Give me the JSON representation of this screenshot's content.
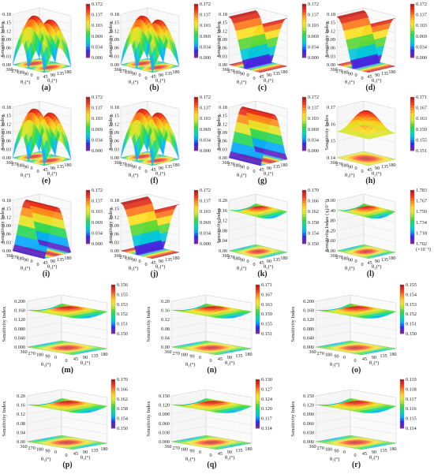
{
  "common": {
    "ylabel": "Sensitivity Index",
    "x1label": "θ₁(°)",
    "x2label": "θ₂(°)",
    "x1ticks": [
      "360",
      "270",
      "180",
      "90",
      "0"
    ],
    "x2ticks": [
      "0",
      "45",
      "90",
      "135",
      "180"
    ]
  },
  "chart_data": [
    {
      "type": "surface3d",
      "caption": "(a)",
      "pattern": "peaks4",
      "zticks": [
        "0.00",
        "0.03",
        "0.06",
        "0.09",
        "0.12",
        "0.15",
        "0.18"
      ],
      "cbar": [
        "0.172",
        "0.137",
        "0.103",
        "0.069",
        "0.034",
        "0.000"
      ],
      "zlim": [
        0,
        0.18
      ]
    },
    {
      "type": "surface3d",
      "caption": "(b)",
      "pattern": "peaks4",
      "zticks": [
        "0.00",
        "0.03",
        "0.06",
        "0.09",
        "0.12",
        "0.15",
        "0.18"
      ],
      "cbar": [
        "0.172",
        "0.137",
        "0.103",
        "0.069",
        "0.034",
        "0.000"
      ],
      "zlim": [
        0,
        0.18
      ]
    },
    {
      "type": "surface3d",
      "caption": "(c)",
      "pattern": "ridge2",
      "zticks": [
        "0.00",
        "0.03",
        "0.06",
        "0.09",
        "0.12",
        "0.15",
        "0.18"
      ],
      "cbar": [
        "0.172",
        "0.137",
        "0.103",
        "0.069",
        "0.034",
        "0.000"
      ],
      "zlim": [
        0,
        0.18
      ]
    },
    {
      "type": "surface3d",
      "caption": "(d)",
      "pattern": "ridge2",
      "zticks": [
        "0.00",
        "0.03",
        "0.06",
        "0.09",
        "0.12",
        "0.15",
        "0.18"
      ],
      "cbar": [
        "0.172",
        "0.137",
        "0.103",
        "0.069",
        "0.034",
        "0.000"
      ],
      "zlim": [
        0,
        0.18
      ]
    },
    {
      "type": "surface3d",
      "caption": "(e)",
      "pattern": "peaks4",
      "zticks": [
        "0.00",
        "0.03",
        "0.06",
        "0.09",
        "0.12",
        "0.15",
        "0.18"
      ],
      "cbar": [
        "0.172",
        "0.137",
        "0.103",
        "0.069",
        "0.034",
        "0.000"
      ],
      "zlim": [
        0,
        0.18
      ]
    },
    {
      "type": "surface3d",
      "caption": "(f)",
      "pattern": "peaks4",
      "zticks": [
        "0.00",
        "0.03",
        "0.06",
        "0.09",
        "0.12",
        "0.15",
        "0.18"
      ],
      "cbar": [
        "0.172",
        "0.137",
        "0.103",
        "0.069",
        "0.034",
        "0.000"
      ],
      "zlim": [
        0,
        0.18
      ]
    },
    {
      "type": "surface3d",
      "caption": "(g)",
      "pattern": "ridge1",
      "zticks": [
        "0.00",
        "0.03",
        "0.06",
        "0.09",
        "0.12",
        "0.15",
        "0.18"
      ],
      "cbar": [
        "0.172",
        "0.137",
        "0.103",
        "0.069",
        "0.034",
        "0.000"
      ],
      "zlim": [
        0,
        0.18
      ]
    },
    {
      "type": "surface3d",
      "caption": "(h)",
      "pattern": "gentle",
      "zticks": [
        "0.14",
        "0.15",
        "0.16",
        "0.17"
      ],
      "cbar": [
        "0.171",
        "0.167",
        "0.163",
        "0.159",
        "0.155",
        "0.151"
      ],
      "zlim": [
        0.14,
        0.175
      ]
    },
    {
      "type": "surface3d",
      "caption": "(i)",
      "pattern": "ridge1",
      "zticks": [
        "0.00",
        "0.03",
        "0.06",
        "0.09",
        "0.12",
        "0.15",
        "0.18"
      ],
      "cbar": [
        "0.172",
        "0.137",
        "0.103",
        "0.069",
        "0.034",
        "0.000"
      ],
      "zlim": [
        0,
        0.18
      ]
    },
    {
      "type": "surface3d",
      "caption": "(j)",
      "pattern": "ridge2",
      "zticks": [
        "0.00",
        "0.03",
        "0.06",
        "0.09",
        "0.12",
        "0.15",
        "0.18"
      ],
      "cbar": [
        "0.172",
        "0.137",
        "0.103",
        "0.069",
        "0.034",
        "0.000"
      ],
      "zlim": [
        0,
        0.18
      ]
    },
    {
      "type": "surface3d",
      "caption": "(k)",
      "pattern": "flat",
      "zticks": [
        "0.00",
        "0.04",
        "0.08",
        "0.12",
        "0.16",
        "0.20"
      ],
      "cbar": [
        "0.170",
        "0.166",
        "0.162",
        "0.158",
        "0.154",
        "0.150"
      ],
      "zlim": [
        0,
        0.2
      ]
    },
    {
      "type": "surface3d",
      "caption": "(l)",
      "pattern": "flat",
      "ylabel": "Sensitivity Index (×10⁻³)",
      "zticks": [
        "0.00",
        "0.60",
        "1.20",
        "1.80",
        "2.40",
        "3.00"
      ],
      "cbar": [
        "1.783",
        "1.767",
        "1.750",
        "1.734",
        "1.718",
        "1.702"
      ],
      "cbar_unit": "(×10⁻³)",
      "zlim": [
        0,
        3
      ]
    },
    {
      "type": "surface3d",
      "caption": "(m)",
      "pattern": "flat",
      "zticks": [
        "0.000",
        "0.040",
        "0.080",
        "0.120",
        "0.160",
        "0.200"
      ],
      "cbar": [
        "0.156",
        "0.155",
        "0.153",
        "0.152",
        "0.151",
        "0.150"
      ],
      "zlim": [
        0,
        0.2
      ]
    },
    {
      "type": "surface3d",
      "caption": "(n)",
      "pattern": "flat",
      "zticks": [
        "0.00",
        "0.04",
        "0.08",
        "0.12",
        "0.16",
        "0.20"
      ],
      "cbar": [
        "0.171",
        "0.167",
        "0.163",
        "0.159",
        "0.155",
        "0.151"
      ],
      "zlim": [
        0,
        0.2
      ]
    },
    {
      "type": "surface3d",
      "caption": "(o)",
      "pattern": "flat",
      "zticks": [
        "0.000",
        "0.040",
        "0.080",
        "0.120",
        "0.160",
        "0.200"
      ],
      "cbar": [
        "0.155",
        "0.154",
        "0.153",
        "0.152",
        "0.151",
        "0.150"
      ],
      "zlim": [
        0,
        0.2
      ]
    },
    {
      "type": "surface3d",
      "caption": "(p)",
      "pattern": "flat",
      "zticks": [
        "0.00",
        "0.04",
        "0.08",
        "0.12",
        "0.16",
        "0.20"
      ],
      "cbar": [
        "0.170",
        "0.166",
        "0.162",
        "0.158",
        "0.154",
        "0.150"
      ],
      "zlim": [
        0,
        0.2
      ]
    },
    {
      "type": "surface3d",
      "caption": "(q)",
      "pattern": "flat",
      "zticks": [
        "0.000",
        "0.030",
        "0.060",
        "0.090",
        "0.120",
        "0.150"
      ],
      "cbar": [
        "0.130",
        "0.127",
        "0.124",
        "0.120",
        "0.117",
        "0.114"
      ],
      "zlim": [
        0,
        0.15
      ]
    },
    {
      "type": "surface3d",
      "caption": "(r)",
      "pattern": "flat",
      "zticks": [
        "0.000",
        "0.030",
        "0.060",
        "0.090",
        "0.120",
        "0.150"
      ],
      "cbar": [
        "0.119",
        "0.118",
        "0.117",
        "0.116",
        "0.115",
        "0.114"
      ],
      "zlim": [
        0,
        0.15
      ]
    }
  ]
}
